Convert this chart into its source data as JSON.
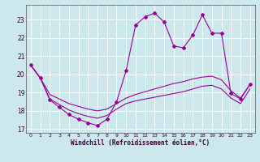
{
  "xlabel": "Windchill (Refroidissement éolien,°C)",
  "bg_color": "#cce8ec",
  "grid_color": "#ffffff",
  "line_color": "#990099",
  "xlim": [
    -0.5,
    23.5
  ],
  "ylim": [
    16.8,
    23.8
  ],
  "yticks": [
    17,
    18,
    19,
    20,
    21,
    22,
    23
  ],
  "xticks": [
    0,
    1,
    2,
    3,
    4,
    5,
    6,
    7,
    8,
    9,
    10,
    11,
    12,
    13,
    14,
    15,
    16,
    17,
    18,
    19,
    20,
    21,
    22,
    23
  ],
  "s1_x": [
    0,
    1,
    2,
    3,
    4,
    5,
    6,
    7,
    8,
    9,
    10,
    11,
    12,
    13,
    14,
    15,
    16,
    17,
    18,
    19,
    20,
    21,
    22,
    23
  ],
  "s1_y": [
    20.5,
    19.8,
    18.6,
    18.2,
    17.8,
    17.55,
    17.35,
    17.2,
    17.55,
    18.5,
    20.2,
    22.7,
    23.15,
    23.35,
    22.85,
    21.55,
    21.45,
    22.15,
    23.25,
    22.25,
    22.25,
    18.95,
    18.65,
    19.45
  ],
  "s2_x": [
    0,
    1,
    2,
    3,
    4,
    5,
    6,
    7,
    8,
    9,
    10,
    11,
    12,
    13,
    14,
    15,
    16,
    17,
    18,
    19,
    20,
    21,
    22,
    23
  ],
  "s2_y": [
    20.5,
    19.8,
    18.9,
    18.65,
    18.4,
    18.25,
    18.1,
    18.0,
    18.1,
    18.4,
    18.7,
    18.9,
    19.05,
    19.2,
    19.35,
    19.5,
    19.6,
    19.75,
    19.85,
    19.9,
    19.7,
    19.1,
    18.7,
    19.45
  ],
  "s3_x": [
    0,
    1,
    2,
    3,
    4,
    5,
    6,
    7,
    8,
    9,
    10,
    11,
    12,
    13,
    14,
    15,
    16,
    17,
    18,
    19,
    20,
    21,
    22,
    23
  ],
  "s3_y": [
    20.5,
    19.8,
    18.65,
    18.35,
    18.05,
    17.85,
    17.7,
    17.6,
    17.75,
    18.1,
    18.4,
    18.55,
    18.65,
    18.75,
    18.85,
    18.95,
    19.05,
    19.2,
    19.35,
    19.4,
    19.2,
    18.7,
    18.4,
    19.2
  ]
}
